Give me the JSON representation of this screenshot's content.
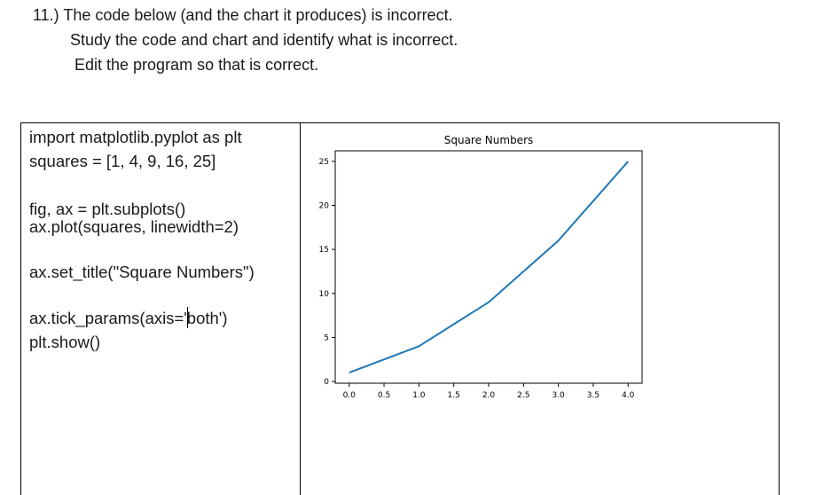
{
  "question": {
    "line1": "11.) The code below (and the chart it produces) is incorrect.",
    "line2": "Study the code and chart and identify what is incorrect.",
    "line3": "Edit the program so that is correct."
  },
  "code": {
    "lines": [
      "import matplotlib.pyplot as plt",
      "squares = [1, 4, 9, 16, 25]",
      "",
      "fig, ax = plt.subplots()",
      "ax.plot(squares, linewidth=2)",
      "",
      "ax.set_title(\"Square Numbers\")",
      "",
      "ax.tick_params(axis='both')",
      "plt.show()"
    ]
  },
  "chart_data": {
    "type": "line",
    "title": "Square Numbers",
    "xlabel": "",
    "ylabel": "",
    "x": [
      0,
      1,
      2,
      3,
      4
    ],
    "series": [
      {
        "values": [
          1,
          4,
          9,
          16,
          25
        ],
        "color": "#1f77b4"
      }
    ],
    "xticks": [
      "0.0",
      "0.5",
      "1.0",
      "1.5",
      "2.0",
      "2.5",
      "3.0",
      "3.5",
      "4.0"
    ],
    "yticks": [
      "0",
      "5",
      "10",
      "15",
      "20",
      "25"
    ],
    "xlim": [
      -0.2,
      4.2
    ],
    "ylim": [
      -0.2,
      26.2
    ],
    "grid": false
  }
}
